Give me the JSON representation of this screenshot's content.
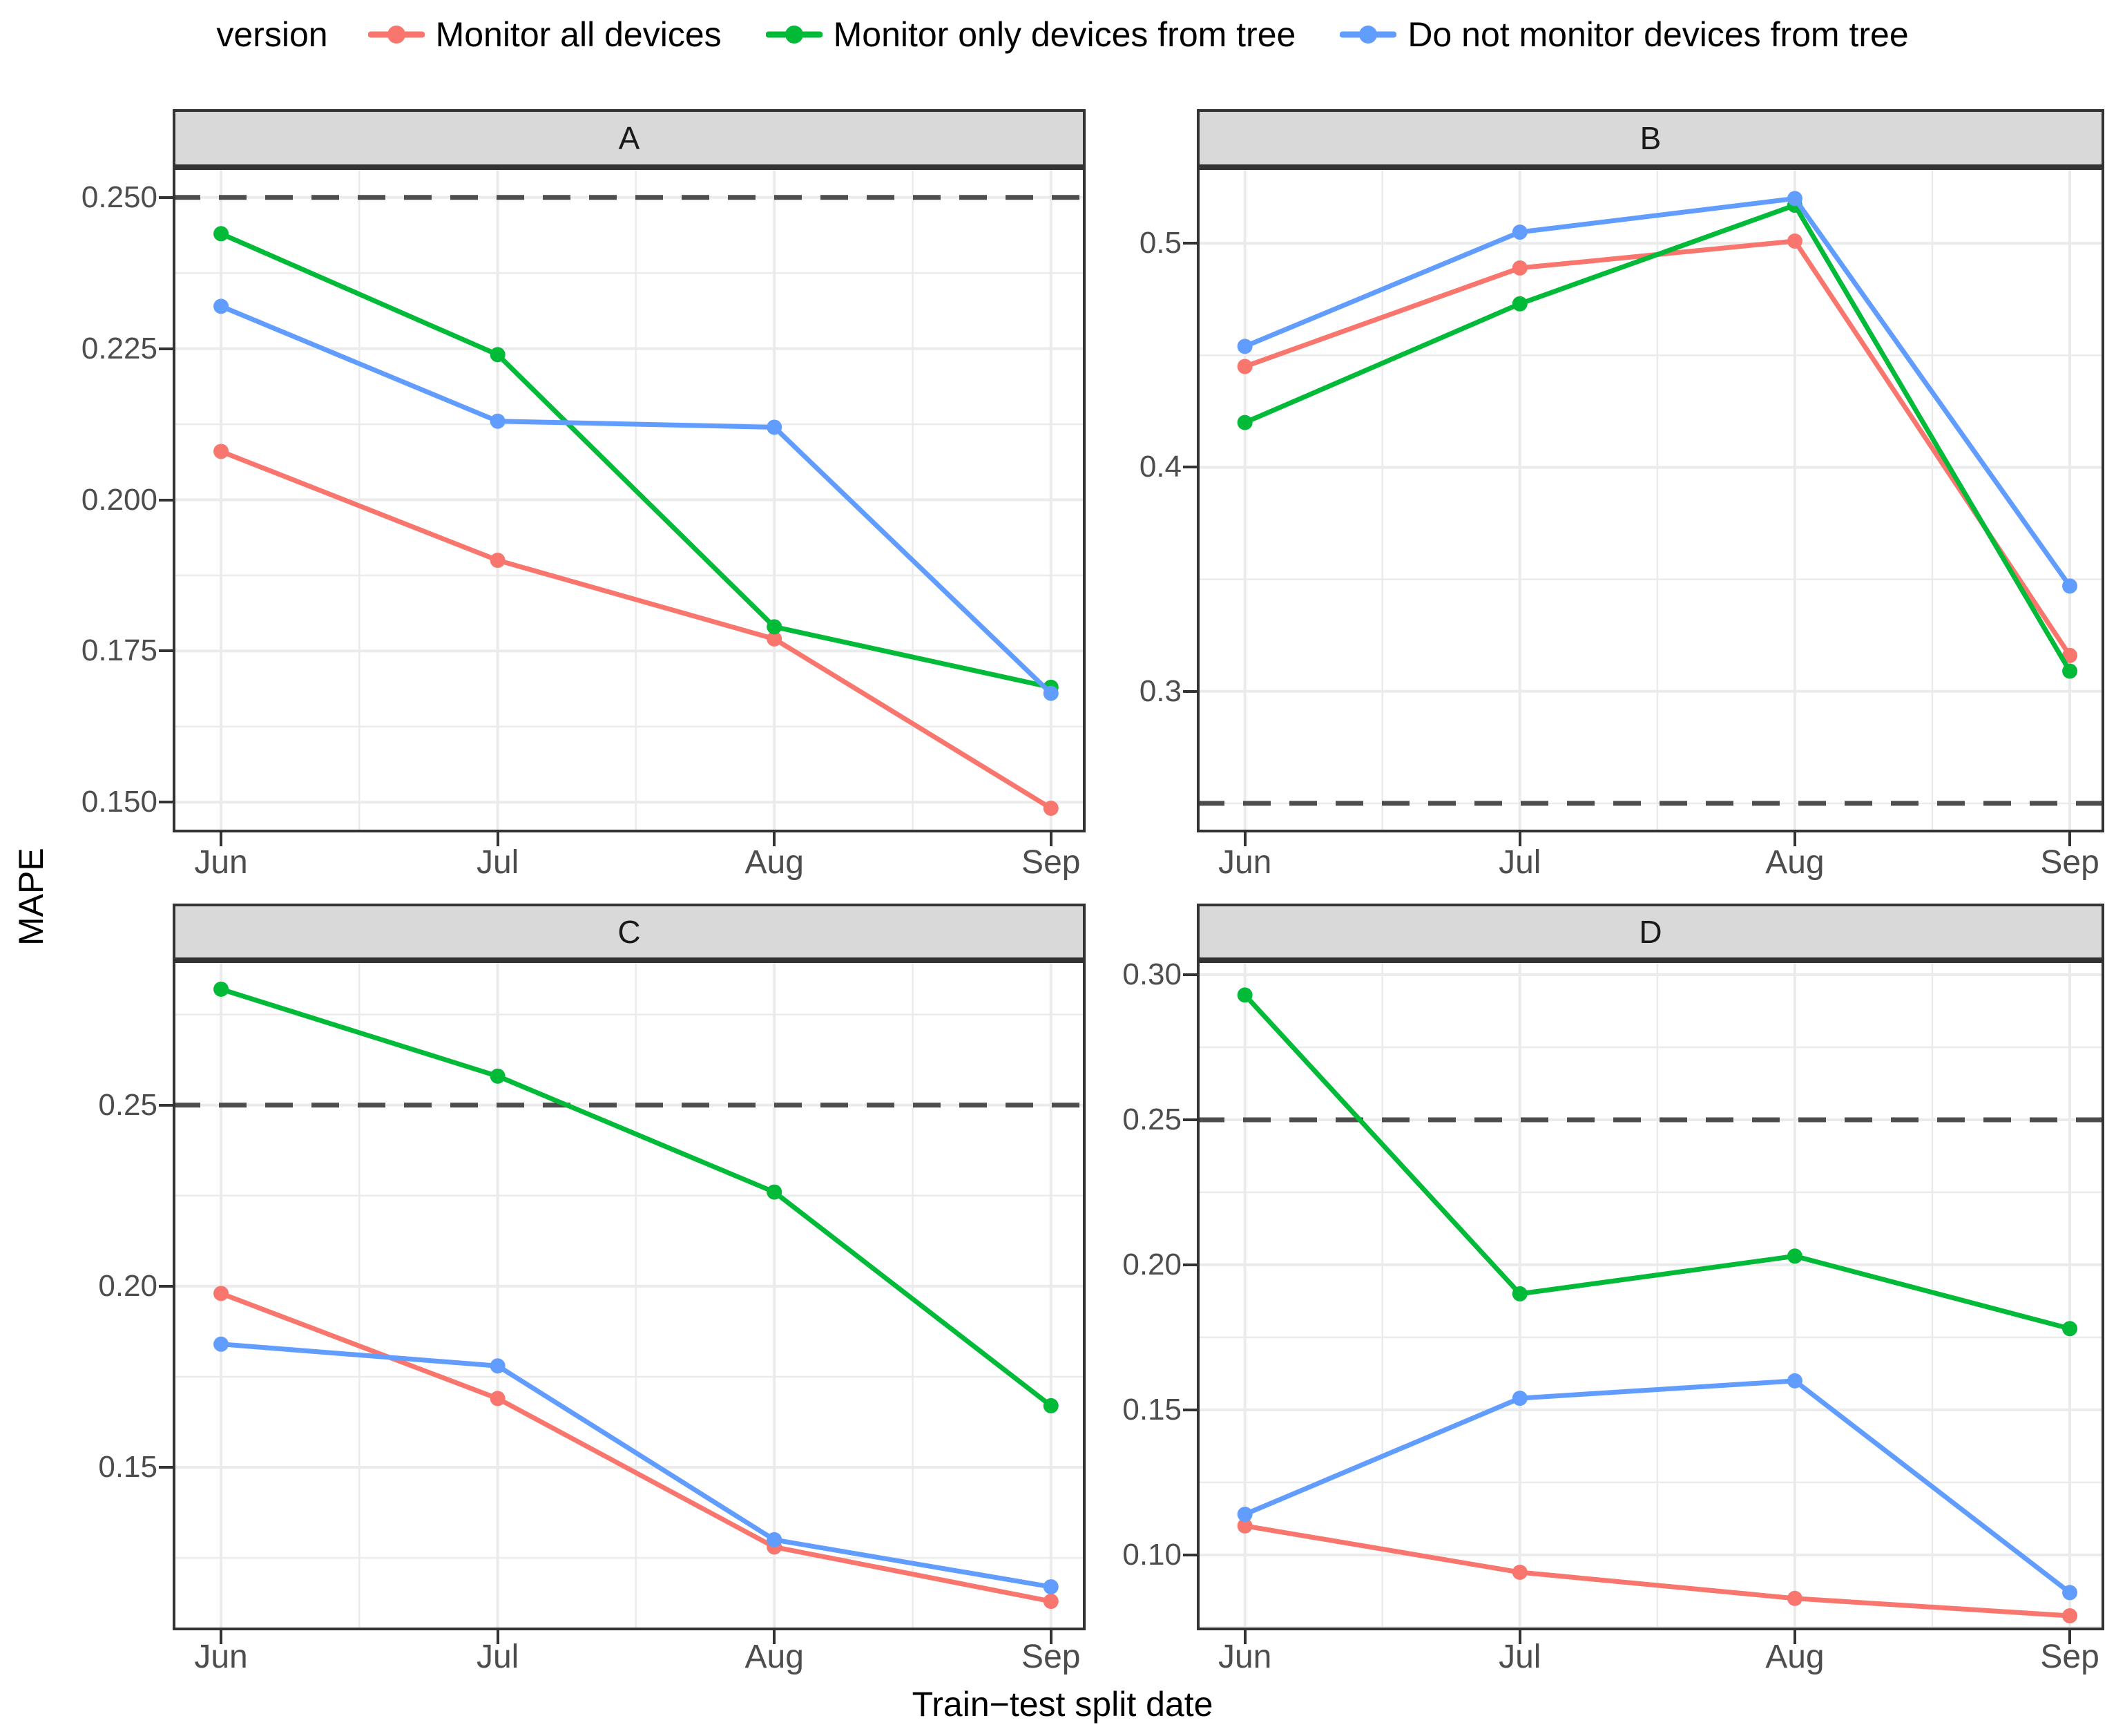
{
  "legend": {
    "title": "version",
    "items": [
      {
        "label": "Monitor all devices",
        "color": "#F8766D"
      },
      {
        "label": "Monitor only devices from tree",
        "color": "#00BA38"
      },
      {
        "label": "Do not monitor devices from tree",
        "color": "#619CFF"
      }
    ]
  },
  "axes": {
    "x_title": "Train−test split date",
    "y_title": "MAPE"
  },
  "style_colors": {
    "grid": "#EBEBEB",
    "panel_border": "#333333",
    "strip_background": "#D9D9D9",
    "tick_text": "#4D4D4D",
    "dashed_reference_line": "#4D4D4D"
  },
  "chart_data": [
    {
      "type": "line",
      "panel": "A",
      "x": [
        "Jun",
        "Jul",
        "Aug",
        "Sep"
      ],
      "ylim": [
        0.145,
        0.255
      ],
      "y_major_ticks": [
        0.15,
        0.175,
        0.2,
        0.225,
        0.25
      ],
      "y_tick_labels": [
        "0.150",
        "0.175",
        "0.200",
        "0.225",
        "0.250"
      ],
      "y_minor_ticks": [
        0.1625,
        0.1875,
        0.2125,
        0.2375
      ],
      "hline": {
        "value": 0.25,
        "style": "dashed"
      },
      "series": [
        {
          "name": "Monitor all devices",
          "color": "#F8766D",
          "values": [
            0.208,
            0.19,
            0.177,
            0.149
          ]
        },
        {
          "name": "Monitor only devices from tree",
          "color": "#00BA38",
          "values": [
            0.244,
            0.224,
            0.179,
            0.169
          ]
        },
        {
          "name": "Do not monitor devices from tree",
          "color": "#619CFF",
          "values": [
            0.232,
            0.213,
            0.212,
            0.168
          ]
        }
      ]
    },
    {
      "type": "line",
      "panel": "B",
      "x": [
        "Jun",
        "Jul",
        "Aug",
        "Sep"
      ],
      "ylim": [
        0.237,
        0.534
      ],
      "y_major_ticks": [
        0.3,
        0.4,
        0.5
      ],
      "y_tick_labels": [
        "0.3",
        "0.4",
        "0.5"
      ],
      "y_minor_ticks": [
        0.25,
        0.35,
        0.45
      ],
      "hline": {
        "value": 0.25,
        "style": "dashed"
      },
      "series": [
        {
          "name": "Monitor all devices",
          "color": "#F8766D",
          "values": [
            0.445,
            0.489,
            0.501,
            0.316
          ]
        },
        {
          "name": "Monitor only devices from tree",
          "color": "#00BA38",
          "values": [
            0.42,
            0.473,
            0.517,
            0.309
          ]
        },
        {
          "name": "Do not monitor devices from tree",
          "color": "#619CFF",
          "values": [
            0.454,
            0.505,
            0.52,
            0.347
          ]
        }
      ]
    },
    {
      "type": "line",
      "panel": "C",
      "x": [
        "Jun",
        "Jul",
        "Aug",
        "Sep"
      ],
      "ylim": [
        0.105,
        0.29
      ],
      "y_major_ticks": [
        0.15,
        0.2,
        0.25
      ],
      "y_tick_labels": [
        "0.15",
        "0.20",
        "0.25"
      ],
      "y_minor_ticks": [
        0.125,
        0.175,
        0.225,
        0.275
      ],
      "hline": {
        "value": 0.25,
        "style": "dashed"
      },
      "series": [
        {
          "name": "Monitor all devices",
          "color": "#F8766D",
          "values": [
            0.198,
            0.169,
            0.128,
            0.113
          ]
        },
        {
          "name": "Monitor only devices from tree",
          "color": "#00BA38",
          "values": [
            0.282,
            0.258,
            0.226,
            0.167
          ]
        },
        {
          "name": "Do not monitor devices from tree",
          "color": "#619CFF",
          "values": [
            0.184,
            0.178,
            0.13,
            0.117
          ]
        }
      ]
    },
    {
      "type": "line",
      "panel": "D",
      "x": [
        "Jun",
        "Jul",
        "Aug",
        "Sep"
      ],
      "ylim": [
        0.074,
        0.305
      ],
      "y_major_ticks": [
        0.1,
        0.15,
        0.2,
        0.25,
        0.3
      ],
      "y_tick_labels": [
        "0.10",
        "0.15",
        "0.20",
        "0.25",
        "0.30"
      ],
      "y_minor_ticks": [
        0.075,
        0.125,
        0.175,
        0.225,
        0.275
      ],
      "hline": {
        "value": 0.25,
        "style": "dashed"
      },
      "series": [
        {
          "name": "Monitor all devices",
          "color": "#F8766D",
          "values": [
            0.11,
            0.094,
            0.085,
            0.079
          ]
        },
        {
          "name": "Monitor only devices from tree",
          "color": "#00BA38",
          "values": [
            0.293,
            0.19,
            0.203,
            0.178
          ]
        },
        {
          "name": "Do not monitor devices from tree",
          "color": "#619CFF",
          "values": [
            0.114,
            0.154,
            0.16,
            0.087
          ]
        }
      ]
    }
  ]
}
